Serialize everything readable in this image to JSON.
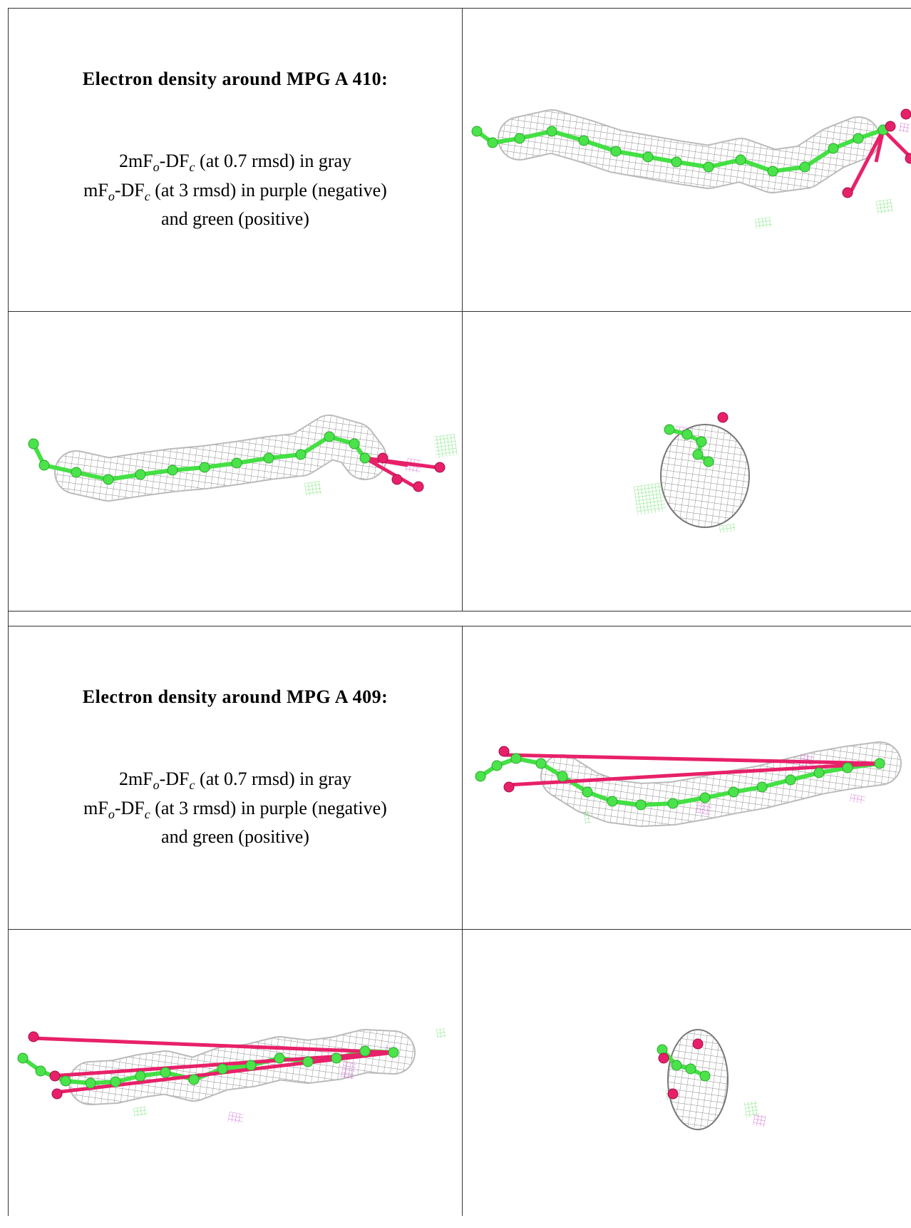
{
  "tables": [
    {
      "title": "Electron density around MPG A 410:",
      "legend": [
        [
          "2mF",
          "o",
          "-DF",
          "c",
          " (at 0.7 rmsd) in gray"
        ],
        [
          "mF",
          "o",
          "-DF",
          "c",
          " (at 3 rmsd) in purple (negative)"
        ],
        [
          "and green (positive)"
        ]
      ]
    },
    {
      "title": "Electron density around MPG A 409:",
      "legend": [
        [
          "2mF",
          "o",
          "-DF",
          "c",
          " (at 0.7 rmsd) in gray"
        ],
        [
          "mF",
          "o",
          "-DF",
          "c",
          " (at 3 rmsd) in purple (negative)"
        ],
        [
          "and green (positive)"
        ]
      ]
    }
  ]
}
